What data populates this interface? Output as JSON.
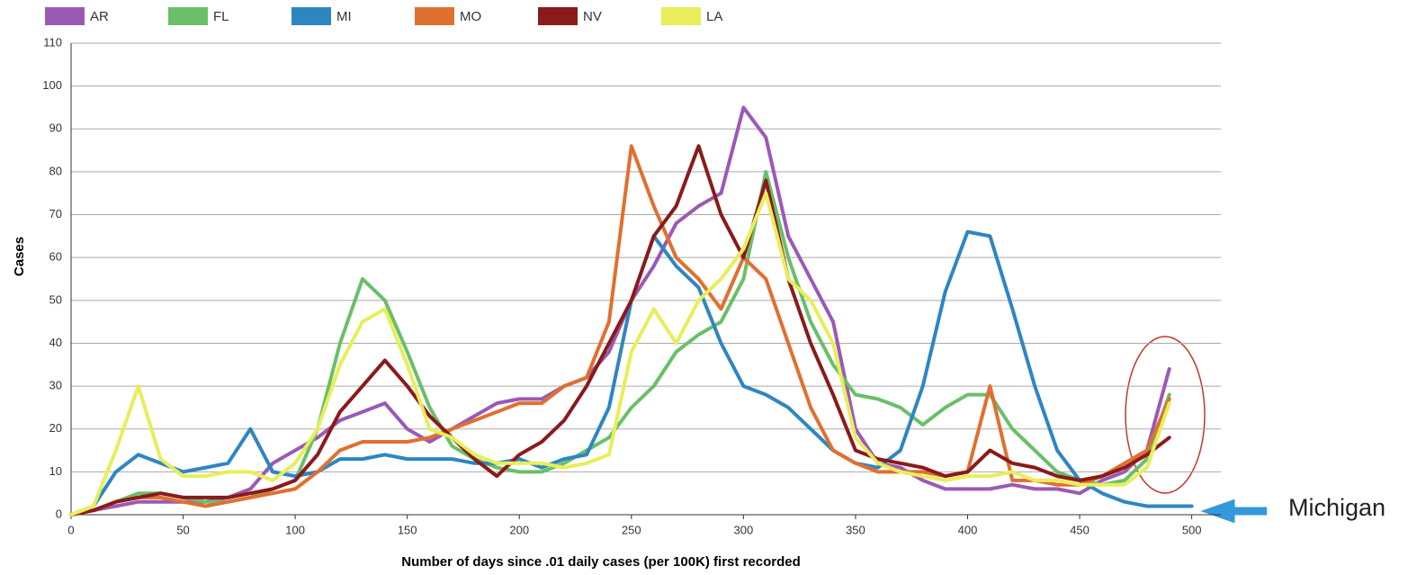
{
  "chart_data": {
    "type": "line",
    "x_label": "Number of days since .01 daily cases (per 100K) first recorded",
    "y_label": "Cases",
    "annotation": "Michigan",
    "x": [
      0,
      10,
      20,
      30,
      40,
      50,
      60,
      70,
      80,
      90,
      100,
      110,
      120,
      130,
      140,
      150,
      160,
      170,
      180,
      190,
      200,
      210,
      220,
      230,
      240,
      250,
      260,
      270,
      280,
      290,
      300,
      310,
      320,
      330,
      340,
      350,
      360,
      370,
      380,
      390,
      400,
      410,
      420,
      430,
      440,
      450,
      460,
      470,
      480,
      490,
      500
    ],
    "series": [
      {
        "name": "AR",
        "color": "#9b59b6",
        "values": [
          0,
          1,
          2,
          3,
          3,
          3,
          3,
          4,
          6,
          12,
          15,
          18,
          22,
          24,
          26,
          20,
          17,
          20,
          23,
          26,
          27,
          27,
          30,
          32,
          38,
          50,
          58,
          68,
          72,
          75,
          95,
          88,
          65,
          55,
          45,
          20,
          12,
          11,
          8,
          6,
          6,
          6,
          7,
          6,
          6,
          5,
          8,
          10,
          15,
          34,
          null
        ]
      },
      {
        "name": "FL",
        "color": "#6abf69",
        "values": [
          0,
          1,
          3,
          5,
          5,
          4,
          3,
          3,
          4,
          6,
          8,
          20,
          40,
          55,
          50,
          38,
          25,
          16,
          13,
          11,
          10,
          10,
          12,
          15,
          18,
          25,
          30,
          38,
          42,
          45,
          55,
          80,
          60,
          45,
          35,
          28,
          27,
          25,
          21,
          25,
          28,
          28,
          20,
          15,
          10,
          8,
          7,
          8,
          13,
          28,
          null
        ]
      },
      {
        "name": "MI",
        "color": "#2e86c1",
        "values": [
          0,
          2,
          10,
          14,
          12,
          10,
          11,
          12,
          20,
          10,
          9,
          10,
          13,
          13,
          14,
          13,
          13,
          13,
          12,
          12,
          13,
          11,
          13,
          14,
          25,
          50,
          65,
          58,
          53,
          40,
          30,
          28,
          25,
          20,
          15,
          12,
          11,
          15,
          30,
          52,
          66,
          65,
          48,
          30,
          15,
          8,
          5,
          3,
          2,
          2,
          2
        ]
      },
      {
        "name": "MO",
        "color": "#e07030",
        "values": [
          0,
          1,
          3,
          4,
          4,
          3,
          2,
          3,
          4,
          5,
          6,
          10,
          15,
          17,
          17,
          17,
          18,
          20,
          22,
          24,
          26,
          26,
          30,
          32,
          45,
          86,
          72,
          60,
          55,
          48,
          60,
          55,
          40,
          25,
          15,
          12,
          10,
          10,
          10,
          9,
          10,
          30,
          8,
          8,
          7,
          7,
          9,
          12,
          15,
          27,
          null
        ]
      },
      {
        "name": "NV",
        "color": "#8b1a1a",
        "values": [
          0,
          1,
          3,
          4,
          5,
          4,
          4,
          4,
          5,
          6,
          8,
          14,
          24,
          30,
          36,
          30,
          23,
          18,
          13,
          9,
          14,
          17,
          22,
          30,
          40,
          50,
          65,
          72,
          86,
          70,
          60,
          78,
          55,
          40,
          28,
          15,
          13,
          12,
          11,
          9,
          10,
          15,
          12,
          11,
          9,
          8,
          9,
          11,
          14,
          18,
          null
        ]
      },
      {
        "name": "LA",
        "color": "#e8ee5a",
        "values": [
          0,
          2,
          15,
          30,
          13,
          9,
          9,
          10,
          10,
          8,
          12,
          20,
          35,
          45,
          48,
          35,
          20,
          18,
          14,
          12,
          12,
          12,
          11,
          12,
          14,
          38,
          48,
          40,
          50,
          55,
          62,
          75,
          55,
          50,
          40,
          18,
          12,
          10,
          9,
          8,
          9,
          9,
          10,
          8,
          8,
          7,
          7,
          7,
          11,
          26,
          null
        ]
      }
    ],
    "xlim": [
      0,
      513
    ],
    "xticks": [
      0,
      50,
      100,
      150,
      200,
      250,
      300,
      350,
      400,
      450,
      500
    ],
    "ylim": [
      0,
      110
    ],
    "yticks": [
      0,
      10,
      20,
      30,
      40,
      50,
      60,
      70,
      80,
      90,
      100,
      110
    ],
    "grid": true,
    "legend": "top"
  }
}
